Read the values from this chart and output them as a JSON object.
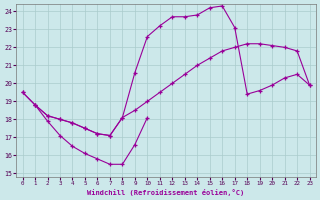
{
  "xlabel": "Windchill (Refroidissement éolien,°C)",
  "background_color": "#cce8ea",
  "line_color": "#990099",
  "grid_color": "#aacccc",
  "xlim": [
    -0.5,
    23.5
  ],
  "ylim": [
    14.8,
    24.4
  ],
  "yticks": [
    15,
    16,
    17,
    18,
    19,
    20,
    21,
    22,
    23,
    24
  ],
  "xticks": [
    0,
    1,
    2,
    3,
    4,
    5,
    6,
    7,
    8,
    9,
    10,
    11,
    12,
    13,
    14,
    15,
    16,
    17,
    18,
    19,
    20,
    21,
    22,
    23
  ],
  "curve1_x": [
    0,
    1,
    2,
    3,
    4,
    5,
    6,
    7,
    8,
    9,
    10,
    11,
    12,
    13,
    14,
    15,
    16,
    17,
    18,
    19,
    20,
    21,
    22,
    23
  ],
  "curve1_y": [
    19.5,
    18.8,
    18.2,
    18.0,
    17.8,
    17.5,
    17.2,
    17.1,
    18.1,
    18.5,
    19.0,
    19.5,
    20.0,
    20.5,
    21.0,
    21.4,
    21.8,
    22.0,
    22.2,
    22.2,
    22.1,
    22.0,
    21.8,
    19.9
  ],
  "curve2_x": [
    0,
    1,
    2,
    3,
    4,
    5,
    6,
    7,
    8,
    9,
    10,
    11,
    12,
    13,
    14,
    15,
    16,
    17,
    18,
    19,
    20,
    21,
    22,
    23
  ],
  "curve2_y": [
    19.5,
    18.8,
    18.2,
    18.0,
    17.8,
    17.5,
    17.2,
    17.1,
    18.1,
    20.6,
    22.6,
    23.2,
    23.7,
    23.7,
    23.8,
    24.2,
    24.3,
    23.1,
    19.4,
    19.6,
    19.9,
    20.3,
    20.5,
    19.9
  ],
  "curve3_x": [
    1,
    2,
    3,
    4,
    5,
    6,
    7,
    8,
    9,
    10
  ],
  "curve3_y": [
    18.8,
    17.9,
    17.1,
    16.5,
    16.1,
    15.8,
    15.5,
    15.5,
    16.6,
    18.1
  ],
  "marker_size": 3.5
}
